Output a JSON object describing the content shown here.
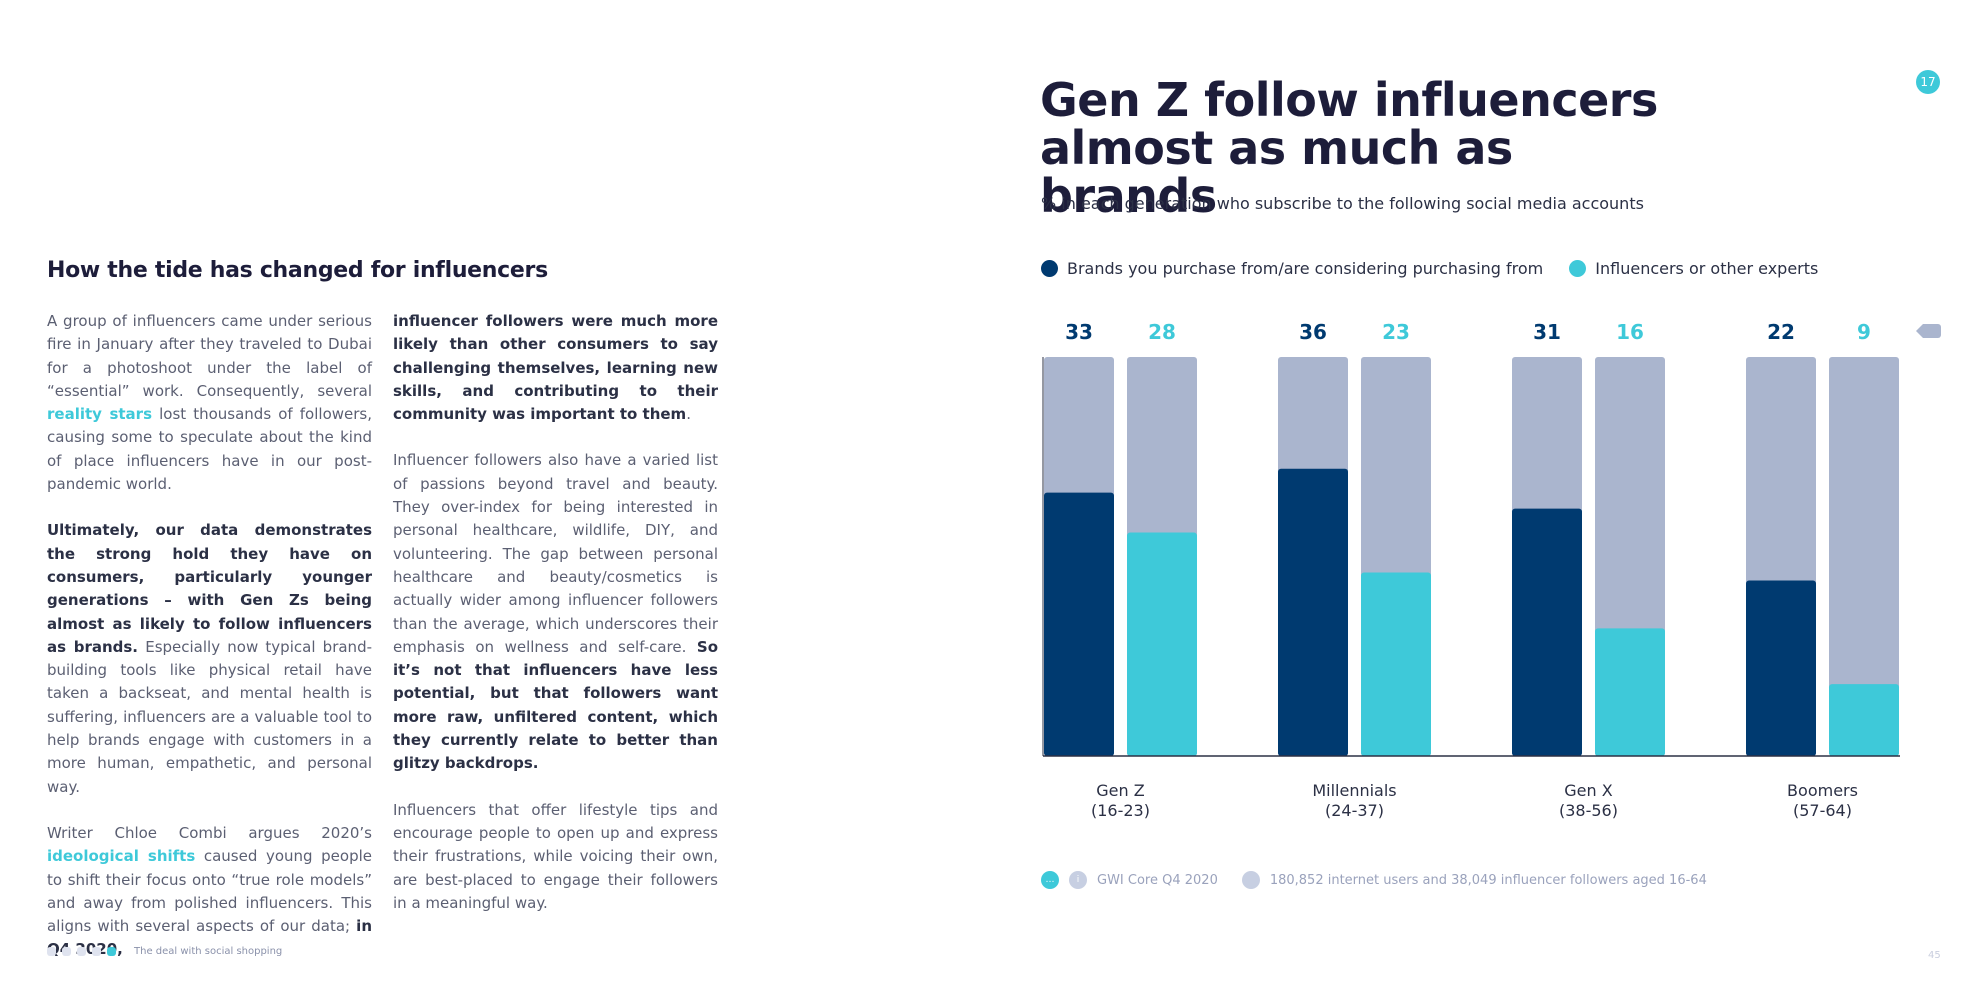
{
  "left": {
    "heading": "How the tide has changed for influencers",
    "col1": {
      "p1_a": "A group of influencers came under serious fire in January after they traveled to Dubai for a photoshoot under the label of “essential” work. Consequently, several ",
      "p1_link": "reality stars",
      "p1_b": " lost thousands of followers, causing some to speculate about the kind of place influencers have in our post-pandemic world.",
      "p2_bold": "Ultimately, our data demonstrates the strong hold they have on consumers, particularly younger generations – with Gen Zs being almost as likely to follow influencers as brands.",
      "p2_rest": " Especially now typical brand-building tools like physical retail have taken a backseat, and mental health is suffering, influencers are a valuable tool to help brands engage with customers in a more human, empathetic, and personal way.",
      "p3_a": "Writer Chloe Combi argues 2020’s ",
      "p3_link": "ideological shifts",
      "p3_b": " caused young people to shift their focus onto “true role models” and away from polished influencers. This aligns with several aspects of our data; ",
      "p3_bold": "in Q4 2020,"
    },
    "col2": {
      "p1_bold": "influencer followers were much more likely than other consumers to say challenging themselves, learning new skills, and contributing to their community was important to them",
      "p1_end": ".",
      "p2_a": "Influencer followers also have a varied list of passions beyond travel and beauty. They over-index for being interested in personal healthcare, wildlife, DIY, and volunteering. The gap between personal healthcare and beauty/cosmetics is actually wider among influencer followers than the average, which underscores their emphasis on wellness and self-care. ",
      "p2_bold": "So it’s not that influencers have less potential, but that followers want more raw, unfiltered content, which they currently relate to better than glitzy backdrops.",
      "p3": "Influencers that offer lifestyle tips and encourage people to open up and express their frustrations, while voicing their own, are best-placed to engage their followers in a meaningful way."
    },
    "footer_label": "The deal with social shopping"
  },
  "right": {
    "badge": "17",
    "page_number": "45",
    "sources": {
      "source_label": "GWI Core Q4 2020",
      "base_label": "180,852 internet users and 38,049 influencer followers aged 16-64"
    }
  },
  "colors": {
    "brands": "#003a70",
    "influencers": "#3ec9d9",
    "track": "#aab5ce",
    "title": "#1d1d3a"
  },
  "chart_data": {
    "type": "bar",
    "title": "Gen Z follow influencers almost as much as brands",
    "subtitle": "% in each generation who subscribe to the following social media accounts",
    "categories": [
      "Gen Z (16-23)",
      "Millennials (24-37)",
      "Gen X (38-56)",
      "Boomers (57-64)"
    ],
    "category_lines": [
      [
        "Gen Z",
        "(16-23)"
      ],
      [
        "Millennials",
        "(24-37)"
      ],
      [
        "Gen X",
        "(38-56)"
      ],
      [
        "Boomers",
        "(57-64)"
      ]
    ],
    "series": [
      {
        "name": "Brands you purchase from/are considering purchasing from",
        "values": [
          33,
          36,
          31,
          22
        ]
      },
      {
        "name": "Influencers or other experts",
        "values": [
          28,
          23,
          16,
          9
        ]
      }
    ],
    "ylim": [
      0,
      50
    ],
    "xlabel": "",
    "ylabel": "",
    "grid": false,
    "legend": "top"
  }
}
